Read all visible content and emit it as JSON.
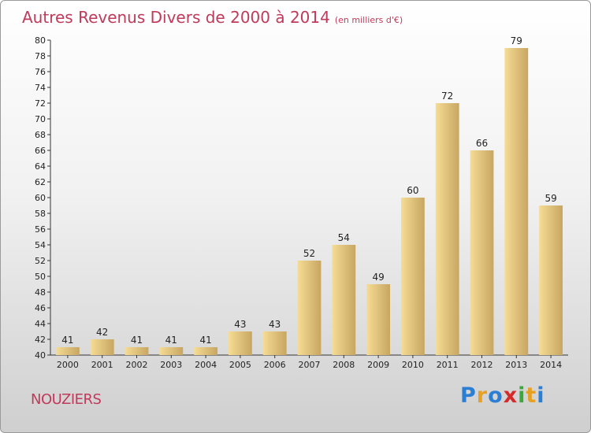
{
  "title": "Autres Revenus Divers de 2000 à 2014",
  "title_unit": "(en milliers d'€)",
  "commune": "NOUZIERS",
  "logo": {
    "text": "Proxiti",
    "letters": [
      {
        "ch": "P",
        "color": "#2a7fd4"
      },
      {
        "ch": "r",
        "color": "#e8a020"
      },
      {
        "ch": "o",
        "color": "#2a7fd4"
      },
      {
        "ch": "x",
        "color": "#d42a2a"
      },
      {
        "ch": "i",
        "color": "#3aa83a"
      },
      {
        "ch": "t",
        "color": "#e8a020"
      },
      {
        "ch": "i",
        "color": "#2a7fd4"
      }
    ]
  },
  "colors": {
    "bar_light": "#f6dc94",
    "bar_dark": "#c7a662",
    "title": "#c03a5b"
  },
  "chart_data": {
    "type": "bar",
    "categories": [
      "2000",
      "2001",
      "2002",
      "2003",
      "2004",
      "2005",
      "2006",
      "2007",
      "2008",
      "2009",
      "2010",
      "2011",
      "2012",
      "2013",
      "2014"
    ],
    "values": [
      41,
      42,
      41,
      41,
      41,
      43,
      43,
      52,
      54,
      49,
      60,
      72,
      66,
      79,
      59
    ],
    "data_labels": [
      "41",
      "42",
      "41",
      "41",
      "41",
      "43",
      "43",
      "52",
      "54",
      "49",
      "60",
      "72",
      "66",
      "79",
      "59"
    ],
    "ylim": [
      40,
      80
    ],
    "yticks": [
      40,
      42,
      44,
      46,
      48,
      50,
      52,
      54,
      56,
      58,
      60,
      62,
      64,
      66,
      68,
      70,
      72,
      74,
      76,
      78,
      80
    ],
    "grid": false,
    "xlabel": "",
    "ylabel": ""
  }
}
